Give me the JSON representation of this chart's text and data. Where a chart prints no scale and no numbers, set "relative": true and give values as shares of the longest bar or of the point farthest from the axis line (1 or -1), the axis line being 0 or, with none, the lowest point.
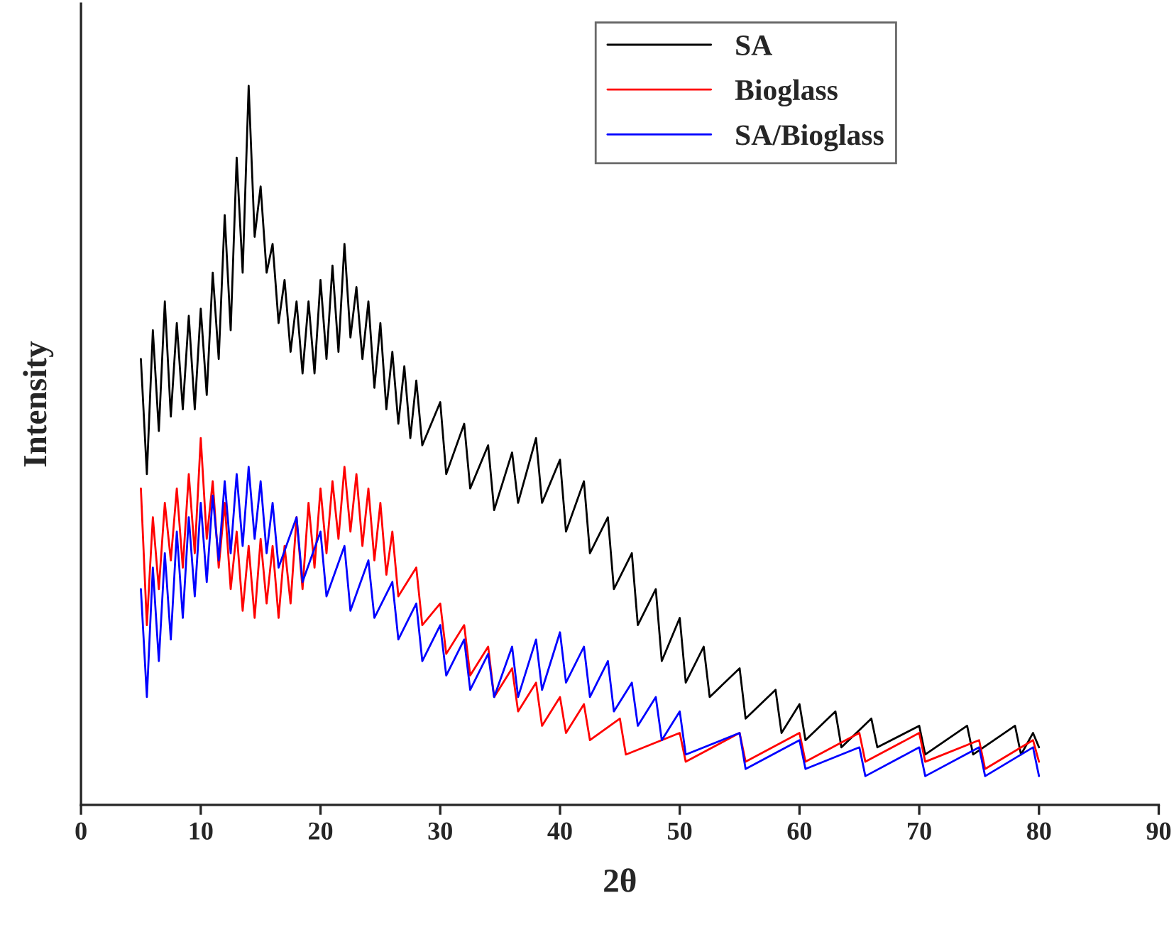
{
  "chart_data": {
    "type": "line",
    "xlabel": "2θ",
    "ylabel": "Intensity",
    "relative": true,
    "xlim": [
      0,
      90
    ],
    "xticks": [
      0,
      10,
      20,
      30,
      40,
      50,
      60,
      70,
      80,
      90
    ],
    "legend": "top right",
    "grid": false,
    "tick_labels": "x",
    "series": [
      {
        "name": "SA",
        "color": "#000000",
        "x": [
          5,
          5.5,
          6,
          6.5,
          7,
          7.5,
          8,
          8.5,
          9,
          9.5,
          10,
          10.5,
          11,
          11.5,
          12,
          12.5,
          13,
          13.5,
          14,
          14.5,
          15,
          15.5,
          16,
          16.5,
          17,
          17.5,
          18,
          18.5,
          19,
          19.5,
          20,
          20.5,
          21,
          21.5,
          22,
          22.5,
          23,
          23.5,
          24,
          24.5,
          25,
          25.5,
          26,
          26.5,
          27,
          27.5,
          28,
          28.5,
          30,
          30.5,
          32,
          32.5,
          34,
          34.5,
          36,
          36.5,
          38,
          38.5,
          40,
          40.5,
          42,
          42.5,
          44,
          44.5,
          46,
          46.5,
          48,
          48.5,
          50,
          50.5,
          52,
          52.5,
          55,
          55.5,
          58,
          58.5,
          60,
          60.5,
          63,
          63.5,
          66,
          66.5,
          70,
          70.5,
          74,
          74.5,
          78,
          78.5,
          79.5,
          80
        ],
        "values": [
          0.62,
          0.46,
          0.66,
          0.52,
          0.7,
          0.54,
          0.67,
          0.55,
          0.68,
          0.55,
          0.69,
          0.57,
          0.74,
          0.62,
          0.82,
          0.66,
          0.9,
          0.74,
          1.0,
          0.79,
          0.86,
          0.74,
          0.78,
          0.67,
          0.73,
          0.63,
          0.7,
          0.6,
          0.7,
          0.6,
          0.73,
          0.62,
          0.75,
          0.63,
          0.78,
          0.65,
          0.72,
          0.62,
          0.7,
          0.58,
          0.67,
          0.55,
          0.63,
          0.53,
          0.61,
          0.51,
          0.59,
          0.5,
          0.56,
          0.46,
          0.53,
          0.44,
          0.5,
          0.41,
          0.49,
          0.42,
          0.51,
          0.42,
          0.48,
          0.38,
          0.45,
          0.35,
          0.4,
          0.3,
          0.35,
          0.25,
          0.3,
          0.2,
          0.26,
          0.17,
          0.22,
          0.15,
          0.19,
          0.12,
          0.16,
          0.1,
          0.14,
          0.09,
          0.13,
          0.08,
          0.12,
          0.08,
          0.11,
          0.07,
          0.11,
          0.07,
          0.11,
          0.07,
          0.1,
          0.08
        ]
      },
      {
        "name": "Bioglass",
        "color": "#ff0000",
        "x": [
          5,
          5.5,
          6,
          6.5,
          7,
          7.5,
          8,
          8.5,
          9,
          9.5,
          10,
          10.5,
          11,
          11.5,
          12,
          12.5,
          13,
          13.5,
          14,
          14.5,
          15,
          15.5,
          16,
          16.5,
          17,
          17.5,
          18,
          18.5,
          19,
          19.5,
          20,
          20.5,
          21,
          21.5,
          22,
          22.5,
          23,
          23.5,
          24,
          24.5,
          25,
          25.5,
          26,
          26.5,
          28,
          28.5,
          30,
          30.5,
          32,
          32.5,
          34,
          34.5,
          36,
          36.5,
          38,
          38.5,
          40,
          40.5,
          42,
          42.5,
          45,
          45.5,
          50,
          50.5,
          55,
          55.5,
          60,
          60.5,
          65,
          65.5,
          70,
          70.5,
          75,
          75.5,
          79.5,
          80
        ],
        "values": [
          0.44,
          0.25,
          0.4,
          0.3,
          0.42,
          0.34,
          0.44,
          0.33,
          0.46,
          0.35,
          0.51,
          0.37,
          0.45,
          0.33,
          0.42,
          0.3,
          0.38,
          0.27,
          0.36,
          0.26,
          0.37,
          0.28,
          0.36,
          0.26,
          0.36,
          0.28,
          0.4,
          0.3,
          0.42,
          0.33,
          0.44,
          0.35,
          0.45,
          0.37,
          0.47,
          0.38,
          0.46,
          0.36,
          0.44,
          0.34,
          0.42,
          0.32,
          0.38,
          0.29,
          0.33,
          0.25,
          0.28,
          0.21,
          0.25,
          0.18,
          0.22,
          0.15,
          0.19,
          0.13,
          0.17,
          0.11,
          0.15,
          0.1,
          0.14,
          0.09,
          0.12,
          0.07,
          0.1,
          0.06,
          0.1,
          0.06,
          0.1,
          0.06,
          0.1,
          0.06,
          0.1,
          0.06,
          0.09,
          0.05,
          0.09,
          0.06
        ]
      },
      {
        "name": "SA/Bioglass",
        "color": "#0000ff",
        "x": [
          5,
          5.5,
          6,
          6.5,
          7,
          7.5,
          8,
          8.5,
          9,
          9.5,
          10,
          10.5,
          11,
          11.5,
          12,
          12.5,
          13,
          13.5,
          14,
          14.5,
          15,
          15.5,
          16,
          16.5,
          18,
          18.5,
          20,
          20.5,
          22,
          22.5,
          24,
          24.5,
          26,
          26.5,
          28,
          28.5,
          30,
          30.5,
          32,
          32.5,
          34,
          34.5,
          36,
          36.5,
          38,
          38.5,
          40,
          40.5,
          42,
          42.5,
          44,
          44.5,
          46,
          46.5,
          48,
          48.5,
          50,
          50.5,
          55,
          55.5,
          60,
          60.5,
          65,
          65.5,
          70,
          70.5,
          75,
          75.5,
          79.5,
          80
        ],
        "values": [
          0.3,
          0.15,
          0.33,
          0.2,
          0.35,
          0.23,
          0.38,
          0.26,
          0.4,
          0.29,
          0.42,
          0.31,
          0.43,
          0.34,
          0.45,
          0.35,
          0.46,
          0.36,
          0.47,
          0.37,
          0.45,
          0.35,
          0.42,
          0.33,
          0.4,
          0.31,
          0.38,
          0.29,
          0.36,
          0.27,
          0.34,
          0.26,
          0.31,
          0.23,
          0.28,
          0.2,
          0.25,
          0.18,
          0.23,
          0.16,
          0.21,
          0.15,
          0.22,
          0.15,
          0.23,
          0.16,
          0.24,
          0.17,
          0.22,
          0.15,
          0.2,
          0.13,
          0.17,
          0.11,
          0.15,
          0.09,
          0.13,
          0.07,
          0.1,
          0.05,
          0.09,
          0.05,
          0.08,
          0.04,
          0.08,
          0.04,
          0.08,
          0.04,
          0.08,
          0.04
        ]
      }
    ]
  }
}
